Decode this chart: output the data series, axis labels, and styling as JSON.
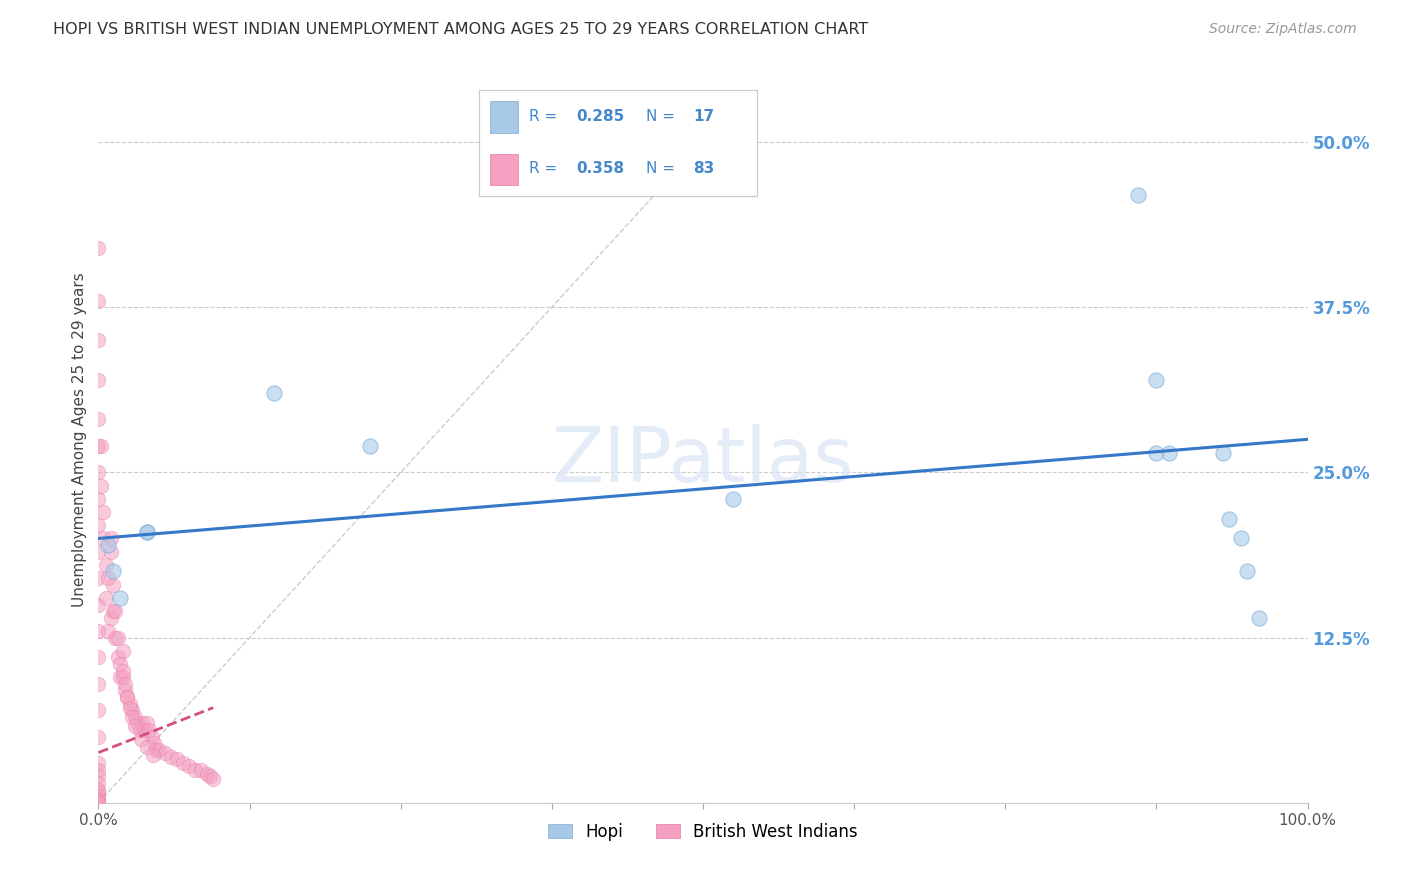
{
  "title": "HOPI VS BRITISH WEST INDIAN UNEMPLOYMENT AMONG AGES 25 TO 29 YEARS CORRELATION CHART",
  "source": "Source: ZipAtlas.com",
  "ylabel": "Unemployment Among Ages 25 to 29 years",
  "xlim": [
    0,
    1.0
  ],
  "ylim": [
    0,
    0.55
  ],
  "xticks": [
    0.0,
    0.125,
    0.25,
    0.375,
    0.5,
    0.625,
    0.75,
    0.875,
    1.0
  ],
  "xticklabels": [
    "0.0%",
    "",
    "",
    "",
    "",
    "",
    "",
    "",
    "100.0%"
  ],
  "yticks_right": [
    0.125,
    0.25,
    0.375,
    0.5
  ],
  "yticklabels_right": [
    "12.5%",
    "25.0%",
    "37.5%",
    "50.0%"
  ],
  "hopi_R": "0.285",
  "hopi_N": "17",
  "bwi_R": "0.358",
  "bwi_N": "83",
  "hopi_color": "#a8c8e8",
  "hopi_edge_color": "#7aafd4",
  "bwi_color": "#f4a0c0",
  "bwi_edge_color": "#e87aaa",
  "trend_hopi_color": "#3578c8",
  "trend_bwi_color": "#d45080",
  "legend_text_color": "#4488cc",
  "hopi_scatter_x": [
    0.008,
    0.012,
    0.018,
    0.04,
    0.04,
    0.145,
    0.225,
    0.525,
    0.86,
    0.875,
    0.875,
    0.885,
    0.93,
    0.935,
    0.945,
    0.95,
    0.96
  ],
  "hopi_scatter_y": [
    0.195,
    0.175,
    0.155,
    0.205,
    0.205,
    0.31,
    0.27,
    0.23,
    0.46,
    0.32,
    0.265,
    0.265,
    0.265,
    0.215,
    0.2,
    0.175,
    0.14
  ],
  "bwi_scatter_x": [
    0.0,
    0.0,
    0.0,
    0.0,
    0.0,
    0.0,
    0.0,
    0.0,
    0.0,
    0.0,
    0.0,
    0.0,
    0.0,
    0.0,
    0.0,
    0.0,
    0.0,
    0.0,
    0.0,
    0.0,
    0.0,
    0.0,
    0.0,
    0.0,
    0.0,
    0.0,
    0.0,
    0.0,
    0.002,
    0.002,
    0.004,
    0.004,
    0.006,
    0.006,
    0.008,
    0.008,
    0.01,
    0.01,
    0.012,
    0.014,
    0.016,
    0.018,
    0.02,
    0.02,
    0.022,
    0.024,
    0.026,
    0.028,
    0.03,
    0.032,
    0.034,
    0.036,
    0.038,
    0.04,
    0.042,
    0.044,
    0.046,
    0.048,
    0.05,
    0.055,
    0.06,
    0.065,
    0.07,
    0.075,
    0.08,
    0.085,
    0.09,
    0.092,
    0.095,
    0.01,
    0.012,
    0.014,
    0.016,
    0.018,
    0.02,
    0.022,
    0.024,
    0.026,
    0.028,
    0.03,
    0.035,
    0.04,
    0.045
  ],
  "bwi_scatter_y": [
    0.42,
    0.38,
    0.35,
    0.32,
    0.29,
    0.27,
    0.25,
    0.23,
    0.21,
    0.19,
    0.17,
    0.15,
    0.13,
    0.11,
    0.09,
    0.07,
    0.05,
    0.03,
    0.025,
    0.02,
    0.015,
    0.01,
    0.008,
    0.005,
    0.003,
    0.001,
    0.0,
    0.0,
    0.27,
    0.24,
    0.22,
    0.2,
    0.18,
    0.155,
    0.17,
    0.13,
    0.19,
    0.14,
    0.145,
    0.125,
    0.11,
    0.095,
    0.115,
    0.095,
    0.085,
    0.08,
    0.075,
    0.07,
    0.065,
    0.06,
    0.055,
    0.06,
    0.055,
    0.06,
    0.055,
    0.05,
    0.045,
    0.04,
    0.04,
    0.038,
    0.035,
    0.033,
    0.03,
    0.028,
    0.025,
    0.025,
    0.022,
    0.02,
    0.018,
    0.2,
    0.165,
    0.145,
    0.125,
    0.105,
    0.1,
    0.09,
    0.08,
    0.072,
    0.065,
    0.058,
    0.048,
    0.042,
    0.036
  ],
  "hopi_trend_x0": 0.0,
  "hopi_trend_x1": 1.0,
  "hopi_trend_y0": 0.2,
  "hopi_trend_y1": 0.275,
  "bwi_trend_x0": 0.0,
  "bwi_trend_x1": 0.095,
  "bwi_trend_y0": 0.038,
  "bwi_trend_y1": 0.072,
  "ref_line_x0": 0.0,
  "ref_line_x1": 0.52,
  "ref_line_y0": 0.0,
  "ref_line_y1": 0.52,
  "watermark": "ZIPatlas",
  "background_color": "#ffffff",
  "grid_color": "#cccccc",
  "title_color": "#333333",
  "right_axis_color": "#5599dd"
}
